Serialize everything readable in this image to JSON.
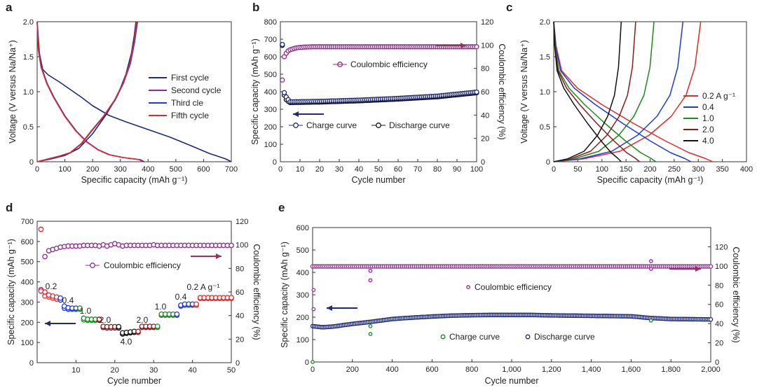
{
  "colors": {
    "navy": "#1f2a78",
    "purple": "#8e2a8e",
    "blue": "#1f3bd6",
    "red": "#e32a2a",
    "green": "#1a8a1a",
    "darkred": "#8b1a1a",
    "black": "#111111",
    "maroon_arrow": "#9c3060"
  },
  "chart_data": [
    {
      "panel": "a",
      "type": "line",
      "xlabel": "Specific capacity (mAh g⁻¹)",
      "ylabel": "Voltage (V versus Na/Na⁺)",
      "xlim": [
        0,
        700
      ],
      "ylim": [
        0,
        2.0
      ],
      "xticks": [
        "0",
        "100",
        "200",
        "300",
        "400",
        "500",
        "600",
        "700"
      ],
      "yticks": [
        "0",
        "0.5",
        "1.0",
        "1.5",
        "2.0"
      ],
      "legend_position": "right",
      "series": [
        {
          "name": "First cycle",
          "color": "navy",
          "discharge": [
            [
              0,
              2.0
            ],
            [
              8,
              1.55
            ],
            [
              20,
              1.32
            ],
            [
              40,
              1.24
            ],
            [
              80,
              1.14
            ],
            [
              120,
              1.03
            ],
            [
              160,
              0.92
            ],
            [
              200,
              0.8
            ],
            [
              260,
              0.66
            ],
            [
              320,
              0.57
            ],
            [
              400,
              0.46
            ],
            [
              480,
              0.35
            ],
            [
              560,
              0.22
            ],
            [
              620,
              0.12
            ],
            [
              680,
              0.04
            ],
            [
              700,
              0.0
            ]
          ],
          "charge": [
            [
              0,
              0.0
            ],
            [
              50,
              0.04
            ],
            [
              100,
              0.09
            ],
            [
              150,
              0.19
            ],
            [
              200,
              0.4
            ],
            [
              250,
              0.68
            ],
            [
              290,
              0.95
            ],
            [
              320,
              1.25
            ],
            [
              340,
              1.55
            ],
            [
              350,
              1.8
            ],
            [
              356,
              2.0
            ]
          ]
        },
        {
          "name": "Second cycle",
          "color": "purple",
          "discharge": [
            [
              0,
              2.0
            ],
            [
              5,
              1.6
            ],
            [
              15,
              1.35
            ],
            [
              35,
              1.12
            ],
            [
              60,
              0.92
            ],
            [
              100,
              0.65
            ],
            [
              140,
              0.44
            ],
            [
              180,
              0.28
            ],
            [
              220,
              0.17
            ],
            [
              260,
              0.1
            ],
            [
              310,
              0.06
            ],
            [
              370,
              0.03
            ],
            [
              383,
              0.0
            ]
          ],
          "charge": [
            [
              0,
              0.0
            ],
            [
              40,
              0.04
            ],
            [
              80,
              0.08
            ],
            [
              120,
              0.13
            ],
            [
              160,
              0.26
            ],
            [
              200,
              0.46
            ],
            [
              240,
              0.65
            ],
            [
              280,
              0.88
            ],
            [
              310,
              1.12
            ],
            [
              335,
              1.4
            ],
            [
              350,
              1.7
            ],
            [
              360,
              2.0
            ]
          ]
        },
        {
          "name": "Third cle",
          "color": "blue",
          "discharge": [
            [
              0,
              2.0
            ],
            [
              6,
              1.6
            ],
            [
              16,
              1.35
            ],
            [
              36,
              1.12
            ],
            [
              61,
              0.92
            ],
            [
              101,
              0.65
            ],
            [
              141,
              0.44
            ],
            [
              181,
              0.28
            ],
            [
              221,
              0.17
            ],
            [
              261,
              0.1
            ],
            [
              311,
              0.06
            ],
            [
              372,
              0.03
            ],
            [
              386,
              0.0
            ]
          ],
          "charge": [
            [
              0,
              0.0
            ],
            [
              41,
              0.04
            ],
            [
              81,
              0.08
            ],
            [
              121,
              0.13
            ],
            [
              161,
              0.26
            ],
            [
              201,
              0.46
            ],
            [
              241,
              0.65
            ],
            [
              281,
              0.88
            ],
            [
              311,
              1.12
            ],
            [
              336,
              1.4
            ],
            [
              351,
              1.7
            ],
            [
              362,
              2.0
            ]
          ]
        },
        {
          "name": "Fifth cycle",
          "color": "red",
          "discharge": [
            [
              0,
              2.0
            ],
            [
              4,
              1.6
            ],
            [
              14,
              1.35
            ],
            [
              34,
              1.12
            ],
            [
              59,
              0.92
            ],
            [
              99,
              0.65
            ],
            [
              139,
              0.44
            ],
            [
              179,
              0.28
            ],
            [
              219,
              0.17
            ],
            [
              259,
              0.1
            ],
            [
              309,
              0.06
            ],
            [
              368,
              0.03
            ],
            [
              380,
              0.0
            ]
          ],
          "charge": [
            [
              0,
              0.0
            ],
            [
              39,
              0.04
            ],
            [
              79,
              0.08
            ],
            [
              119,
              0.13
            ],
            [
              159,
              0.26
            ],
            [
              199,
              0.46
            ],
            [
              239,
              0.65
            ],
            [
              279,
              0.88
            ],
            [
              309,
              1.12
            ],
            [
              334,
              1.4
            ],
            [
              349,
              1.7
            ],
            [
              358,
              2.0
            ]
          ]
        }
      ]
    },
    {
      "panel": "b",
      "type": "scatter",
      "xlabel": "Cycle number",
      "ylabel_left": "Specific capacity (mAh g⁻¹)",
      "ylabel_right": "Coulombic efficiency (%)",
      "xlim": [
        0,
        100
      ],
      "ylim_left": [
        0,
        800
      ],
      "ylim_right": [
        0,
        120
      ],
      "xticks": [
        "0",
        "10",
        "20",
        "30",
        "40",
        "50",
        "60",
        "70",
        "80",
        "90",
        "100"
      ],
      "yticks_left": [
        "0",
        "100",
        "200",
        "300",
        "400",
        "500",
        "600",
        "700",
        "800"
      ],
      "yticks_right": [
        "0",
        "20",
        "40",
        "60",
        "80",
        "100",
        "120"
      ],
      "ce_label": "Coulombic efficiency",
      "charge_label": "Charge curve",
      "discharge_label": "Discharge curve",
      "coulombic_efficiency": [
        70,
        90,
        93,
        95,
        96,
        96.5,
        97,
        97.5,
        97.8,
        98,
        98,
        98.2,
        98.3,
        98.4,
        98.4,
        98.5,
        98.5,
        98.5,
        98.5,
        98.6
      ],
      "ce_plateau": 98.5,
      "charge_first": [
        670,
        395,
        370,
        355
      ],
      "discharge_first": [
        665,
        380,
        355,
        345
      ],
      "capacity_trend": [
        [
          5,
          342
        ],
        [
          20,
          345
        ],
        [
          40,
          352
        ],
        [
          60,
          362
        ],
        [
          80,
          375
        ],
        [
          100,
          398
        ]
      ]
    },
    {
      "panel": "c",
      "type": "line",
      "xlabel": "Specific capacity (mAh g⁻¹)",
      "ylabel": "Voltage (V versus Na/Na⁺)",
      "xlim": [
        0,
        400
      ],
      "ylim": [
        0,
        2.0
      ],
      "xticks": [
        "0",
        "50",
        "100",
        "150",
        "200",
        "250",
        "300",
        "350",
        "400"
      ],
      "yticks": [
        "0",
        "0.5",
        "1.0",
        "1.5",
        "2.0"
      ],
      "legend": [
        "0.2 A g⁻¹",
        "0.4",
        "1.0",
        "2.0",
        "4.0"
      ],
      "series": [
        {
          "name": "0.2 A g⁻¹",
          "color": "red",
          "capacity": 330,
          "charge_end": 305
        },
        {
          "name": "0.4",
          "color": "blue",
          "capacity": 285,
          "charge_end": 268
        },
        {
          "name": "1.0",
          "color": "green",
          "capacity": 212,
          "charge_end": 208
        },
        {
          "name": "2.0",
          "color": "darkred",
          "capacity": 178,
          "charge_end": 170
        },
        {
          "name": "4.0",
          "color": "black",
          "capacity": 140,
          "charge_end": 140
        }
      ]
    },
    {
      "panel": "d",
      "type": "scatter",
      "xlabel": "Cycle number",
      "ylabel_left": "Specific capacity (mAh g⁻¹)",
      "ylabel_right": "Coulombic efficiency (%)",
      "xlim": [
        0,
        50
      ],
      "ylim_left": [
        0,
        700
      ],
      "ylim_right": [
        0,
        120
      ],
      "xticks": [
        "10",
        "20",
        "30",
        "40",
        "50"
      ],
      "yticks_left": [
        "0",
        "100",
        "200",
        "300",
        "400",
        "500",
        "600",
        "700"
      ],
      "yticks_right": [
        "0",
        "20",
        "40",
        "60",
        "80",
        "100",
        "120"
      ],
      "ce_label": "Coulombic efficiency",
      "rate_labels": [
        "0.2",
        "0.4",
        "1.0",
        "2.0",
        "4.0",
        "2.0",
        "1.0",
        "0.4",
        "0.2 A g⁻¹"
      ],
      "first_ce": 62,
      "ce": [
        62,
        90,
        95,
        96,
        97,
        98,
        98.5,
        99,
        99,
        99,
        99,
        99.5,
        99.5,
        99.5,
        99.5,
        99,
        100,
        99,
        100,
        101,
        100,
        99,
        99.5,
        99.5,
        99.5,
        99.5,
        99.5,
        99.5,
        99.5,
        100,
        99.5,
        99.5,
        99.5,
        99.5,
        99.5,
        99.5,
        99.5,
        99.5,
        99.5,
        99.5,
        99.5,
        99.5,
        99.5,
        99.5,
        99.5,
        99.5,
        99.5,
        99.5,
        99.5,
        99.5
      ],
      "charge": [
        660,
        350,
        335,
        330,
        325,
        320,
        280,
        272,
        270,
        270,
        270,
        220,
        215,
        215,
        215,
        215,
        180,
        178,
        178,
        178,
        178,
        148,
        150,
        152,
        155,
        155,
        180,
        180,
        180,
        180,
        180,
        240,
        240,
        240,
        240,
        240,
        285,
        290,
        290,
        290,
        290,
        322,
        322,
        322,
        322,
        322,
        322,
        322,
        322,
        322
      ],
      "discharge": [
        355,
        330,
        325,
        320,
        315,
        310,
        270,
        265,
        265,
        265,
        265,
        212,
        210,
        210,
        210,
        210,
        175,
        172,
        172,
        172,
        172,
        142,
        145,
        148,
        150,
        150,
        175,
        175,
        175,
        175,
        175,
        235,
        235,
        235,
        235,
        235,
        280,
        285,
        285,
        285,
        285,
        318,
        318,
        318,
        318,
        318,
        318,
        318,
        318,
        318
      ]
    },
    {
      "panel": "e",
      "type": "scatter",
      "xlabel": "Cycle number",
      "ylabel_left": "Specific capacity (mAh g⁻¹)",
      "ylabel_right": "Coulombic efficiency (%)",
      "xlim": [
        0,
        2000
      ],
      "ylim_left": [
        0,
        600
      ],
      "ylim_right": [
        0,
        140
      ],
      "xticks": [
        "0",
        "200",
        "400",
        "600",
        "800",
        "1,000",
        "1,200",
        "1,400",
        "1,600",
        "1,800",
        "2,000"
      ],
      "yticks_left": [
        "0",
        "100",
        "200",
        "300",
        "400",
        "500",
        "600"
      ],
      "yticks_right": [
        "0",
        "20",
        "40",
        "60",
        "80",
        "100",
        "120"
      ],
      "ce_label": "Coulombic efficiency",
      "charge_label": "Charge curve",
      "discharge_label": "Discharge curve",
      "capacity_trend": [
        [
          0,
          160
        ],
        [
          50,
          155
        ],
        [
          100,
          158
        ],
        [
          200,
          170
        ],
        [
          300,
          180
        ],
        [
          400,
          192
        ],
        [
          500,
          198
        ],
        [
          600,
          203
        ],
        [
          700,
          207
        ],
        [
          800,
          209
        ],
        [
          900,
          210
        ],
        [
          1000,
          210
        ],
        [
          1100,
          210
        ],
        [
          1200,
          208
        ],
        [
          1400,
          206
        ],
        [
          1600,
          204
        ],
        [
          1700,
          196
        ],
        [
          1800,
          192
        ],
        [
          2000,
          190
        ]
      ],
      "ce_plateau": 99.5,
      "outliers_ce": [
        [
          5,
          55
        ],
        [
          5,
          75
        ],
        [
          290,
          95
        ],
        [
          290,
          85
        ],
        [
          1700,
          105
        ],
        [
          1700,
          97
        ]
      ],
      "outliers_cap": [
        [
          0,
          0
        ],
        [
          290,
          160
        ],
        [
          290,
          125
        ],
        [
          1700,
          185
        ]
      ]
    }
  ]
}
